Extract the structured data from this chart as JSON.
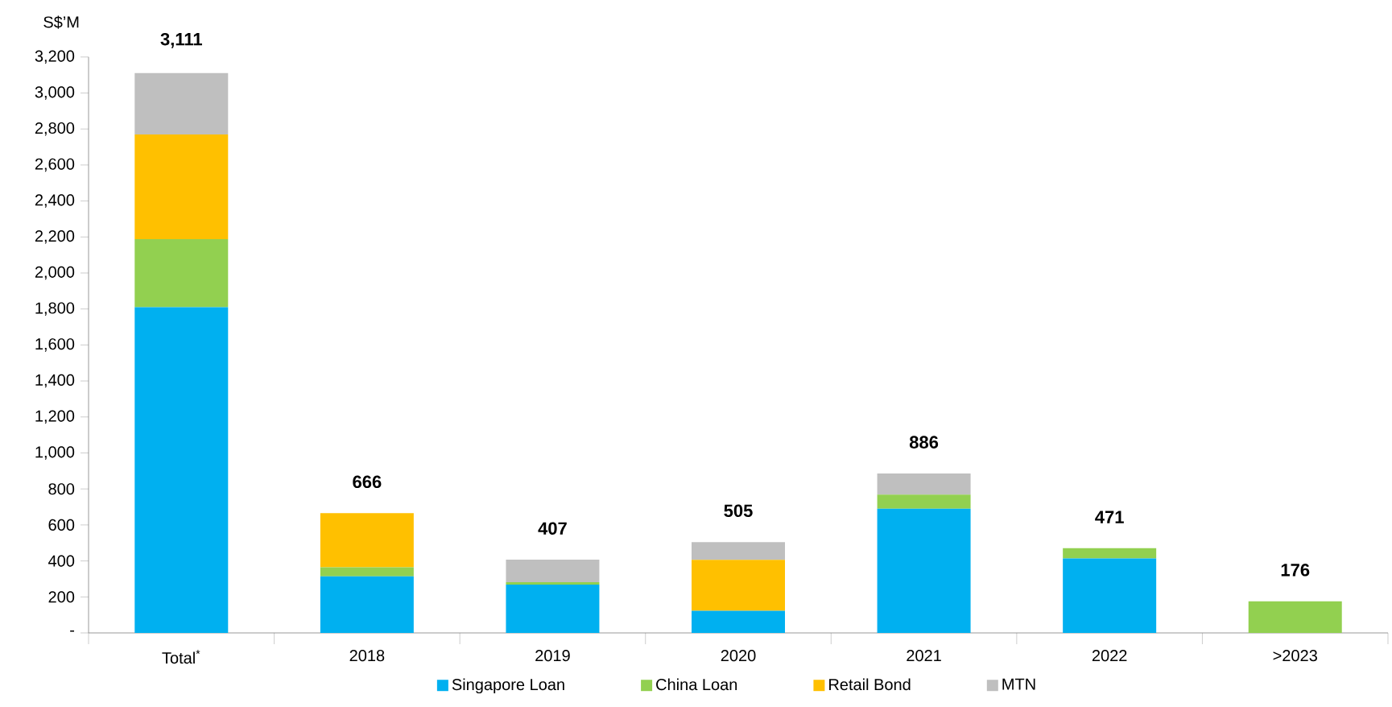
{
  "chart_data": {
    "type": "bar",
    "stacked": true,
    "categories": [
      "Total$^{*}$",
      "2018",
      "2019",
      "2020",
      "2021",
      "2022",
      ">2023"
    ],
    "series": [
      {
        "name": "Singapore Loan",
        "color": "#00b0f0",
        "values": [
          1810,
          314,
          269,
          123,
          690,
          414,
          0
        ]
      },
      {
        "name": "China Loan",
        "color": "#92d050",
        "values": [
          378,
          51,
          13,
          0,
          79,
          57,
          176
        ]
      },
      {
        "name": "Retail Bond",
        "color": "#ffc000",
        "values": [
          582,
          301,
          0,
          283,
          0,
          0,
          0
        ]
      },
      {
        "name": "MTN",
        "color": "#bfbfbf",
        "values": [
          341,
          0,
          125,
          99,
          117,
          0,
          0
        ]
      }
    ],
    "totals": [
      "3,111",
      "666",
      "407",
      "505",
      "886",
      "471",
      "176"
    ],
    "ylabel": "S$’M",
    "ylim": [
      0,
      3200
    ],
    "yticks": [
      {
        "value": 0,
        "label": "-"
      },
      {
        "value": 200,
        "label": "200"
      },
      {
        "value": 400,
        "label": "400"
      },
      {
        "value": 600,
        "label": "600"
      },
      {
        "value": 800,
        "label": "800"
      },
      {
        "value": 1000,
        "label": "1,000"
      },
      {
        "value": 1200,
        "label": "1,200"
      },
      {
        "value": 1400,
        "label": "1,400"
      },
      {
        "value": 1600,
        "label": "1,600"
      },
      {
        "value": 1800,
        "label": "1,800"
      },
      {
        "value": 2000,
        "label": "2,000"
      },
      {
        "value": 2200,
        "label": "2,200"
      },
      {
        "value": 2400,
        "label": "2,400"
      },
      {
        "value": 2600,
        "label": "2,600"
      },
      {
        "value": 2800,
        "label": "2,800"
      },
      {
        "value": 3000,
        "label": "3,000"
      },
      {
        "value": 3200,
        "label": "3,200"
      }
    ],
    "grid": false,
    "legend": "bottom"
  }
}
